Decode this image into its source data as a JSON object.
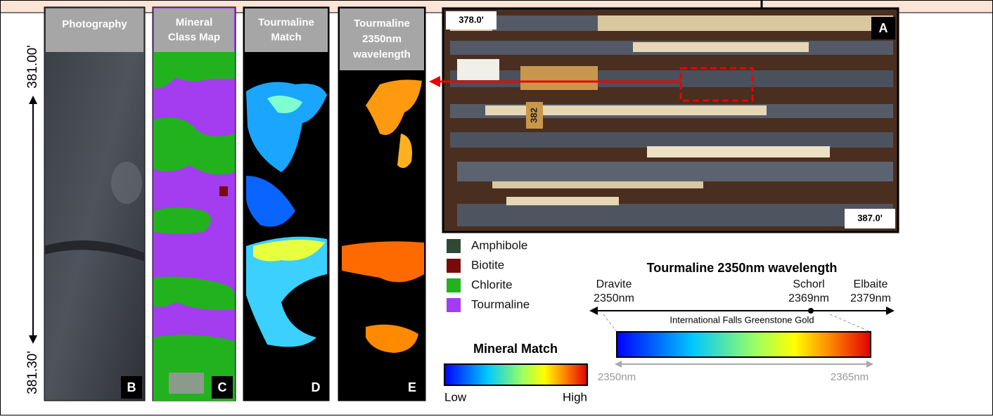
{
  "depth_axis": {
    "top": "381.00'",
    "bottom": "381.30'"
  },
  "panels": [
    {
      "title_lines": [
        "Photography"
      ],
      "letter": "B"
    },
    {
      "title_lines": [
        "Mineral",
        "Class Map"
      ],
      "letter": "C"
    },
    {
      "title_lines": [
        "Tourmaline",
        "Match"
      ],
      "letter": "D"
    },
    {
      "title_lines": [
        "Tourmaline",
        "2350nm",
        "wavelength"
      ],
      "letter": "E"
    }
  ],
  "core_photo": {
    "letter": "A",
    "top_depth": "378.0'",
    "bottom_depth": "387.0'",
    "box_label": "382"
  },
  "legend": {
    "items": [
      {
        "label": "Amphibole",
        "color": "#2e4a36"
      },
      {
        "label": "Biotite",
        "color": "#7a0a0a"
      },
      {
        "label": "Chlorite",
        "color": "#22b21e"
      },
      {
        "label": "Tourmaline",
        "color": "#a43cf0"
      }
    ]
  },
  "mineral_match_scale": {
    "title": "Mineral Match",
    "low": "Low",
    "high": "High"
  },
  "wavelength_scale": {
    "title": "Tourmaline 2350nm wavelength",
    "endmembers": [
      {
        "name": "Dravite",
        "wavelength": "2350nm"
      },
      {
        "name": "Schorl",
        "wavelength": "2369nm"
      },
      {
        "name": "Elbaite",
        "wavelength": "2379nm"
      }
    ],
    "caption": "International Falls Greenstone Gold",
    "range": [
      "2350nm",
      "2365nm"
    ]
  }
}
